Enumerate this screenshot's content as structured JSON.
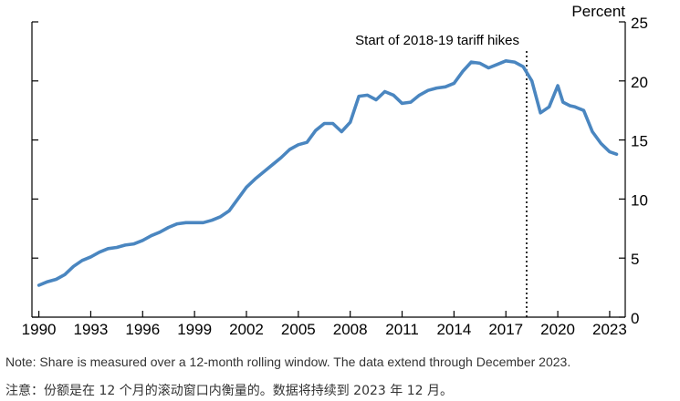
{
  "chart_data": {
    "type": "line",
    "unit_label": "Percent",
    "x_ticks": [
      "1990",
      "1993",
      "1996",
      "1999",
      "2002",
      "2005",
      "2008",
      "2011",
      "2014",
      "2017",
      "2020",
      "2023"
    ],
    "xlim": [
      1989.6,
      2023.9
    ],
    "y_ticks": [
      "0",
      "5",
      "10",
      "15",
      "20",
      "25"
    ],
    "ylim": [
      0,
      25
    ],
    "grid": false,
    "line_color": "#4a86c0",
    "annotation": {
      "label": "Start of 2018-19 tariff hikes",
      "x": 2018.2,
      "style": "dotted-vertical-line"
    },
    "series": [
      {
        "x": [
          1990.0,
          1990.5,
          1991.0,
          1991.5,
          1992.0,
          1992.5,
          1993.0,
          1993.5,
          1994.0,
          1994.5,
          1995.0,
          1995.5,
          1996.0,
          1996.5,
          1997.0,
          1997.5,
          1998.0,
          1998.5,
          1999.0,
          1999.5,
          2000.0,
          2000.5,
          2001.0,
          2001.5,
          2002.0,
          2002.5,
          2003.0,
          2003.5,
          2004.0,
          2004.5,
          2005.0,
          2005.5,
          2006.0,
          2006.5,
          2007.0,
          2007.5,
          2008.0,
          2008.5,
          2009.0,
          2009.5,
          2010.0,
          2010.5,
          2011.0,
          2011.5,
          2012.0,
          2012.5,
          2013.0,
          2013.5,
          2014.0,
          2014.5,
          2015.0,
          2015.5,
          2016.0,
          2016.5,
          2017.0,
          2017.5,
          2018.0,
          2018.5,
          2019.0,
          2019.5,
          2020.0,
          2020.3,
          2020.7,
          2021.0,
          2021.5,
          2022.0,
          2022.5,
          2023.0,
          2023.4
        ],
        "values": [
          2.7,
          3.0,
          3.2,
          3.6,
          4.3,
          4.8,
          5.1,
          5.5,
          5.8,
          5.9,
          6.1,
          6.2,
          6.5,
          6.9,
          7.2,
          7.6,
          7.9,
          8.0,
          8.0,
          8.0,
          8.2,
          8.5,
          9.0,
          10.0,
          11.0,
          11.7,
          12.3,
          12.9,
          13.5,
          14.2,
          14.6,
          14.8,
          15.8,
          16.4,
          16.4,
          15.7,
          16.5,
          18.7,
          18.8,
          18.4,
          19.1,
          18.8,
          18.1,
          18.2,
          18.8,
          19.2,
          19.4,
          19.5,
          19.8,
          20.8,
          21.6,
          21.5,
          21.1,
          21.4,
          21.7,
          21.6,
          21.2,
          20.0,
          17.3,
          17.8,
          19.6,
          18.2,
          17.9,
          17.8,
          17.5,
          15.7,
          14.7,
          14.0,
          13.8
        ]
      }
    ]
  },
  "notes": {
    "english": "Note: Share is measured over a 12-month rolling window. The data extend through December 2023.",
    "chinese": "注意：份额是在 12 个月的滚动窗口内衡量的。数据将持续到 2023 年 12 月。"
  }
}
